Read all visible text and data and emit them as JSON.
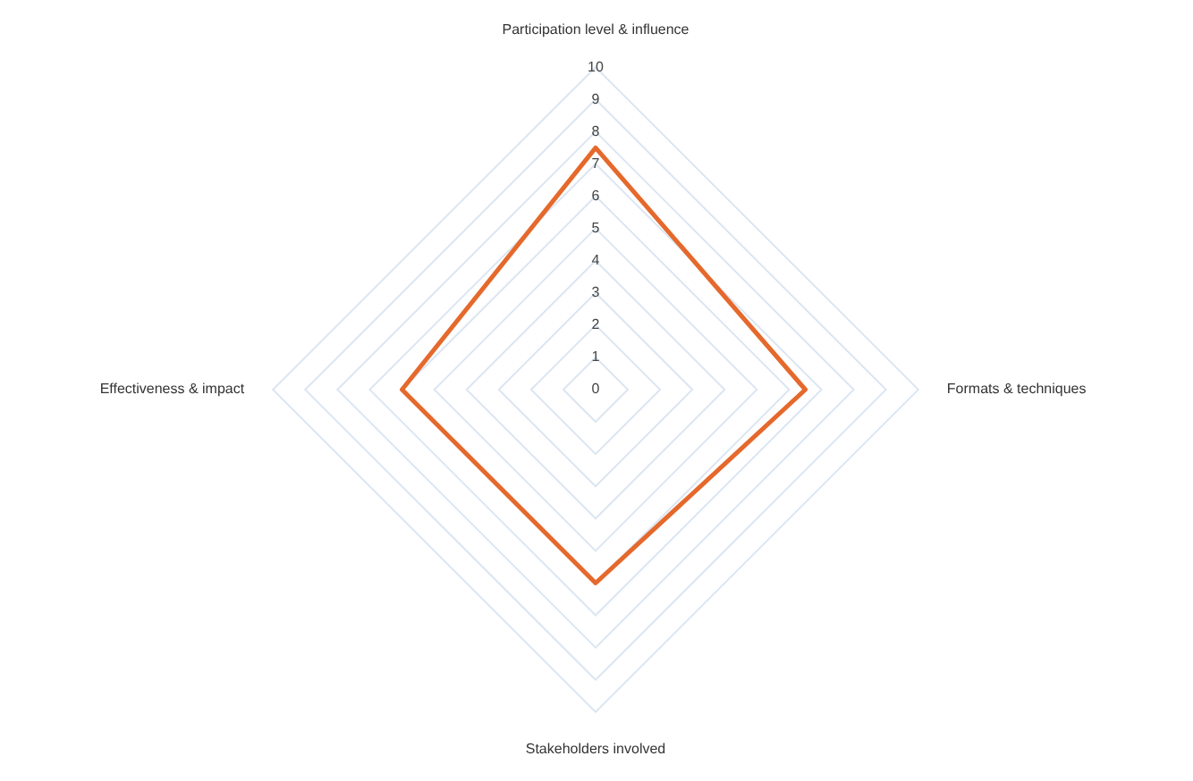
{
  "chart_data": {
    "type": "radar",
    "categories": [
      "Participation level & influence",
      "Formats & techniques",
      "Stakeholders involved",
      "Effectiveness & impact"
    ],
    "series": [
      {
        "color": "#e5692c",
        "values": [
          7.5,
          6.5,
          6,
          6
        ]
      }
    ],
    "ylim": [
      0,
      10
    ],
    "yticks": [
      0,
      1,
      2,
      3,
      4,
      5,
      6,
      7,
      8,
      9,
      10
    ],
    "grid": true,
    "legend": false,
    "marker": "none"
  }
}
